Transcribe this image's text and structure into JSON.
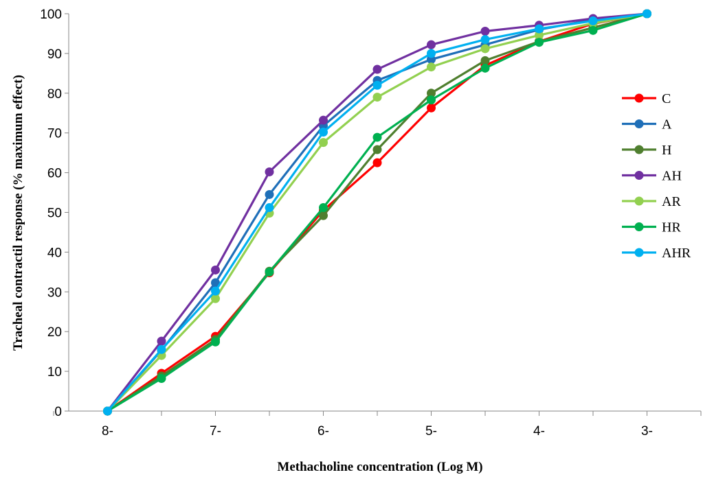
{
  "chart_data": {
    "type": "line",
    "xlabel": "Methacholine concentration (Log M)",
    "ylabel": "Tracheal contractil response (% maximum effect)",
    "title": "",
    "x": [
      -8,
      -7.5,
      -7,
      -6.5,
      -6,
      -5.5,
      -5,
      -4.5,
      -4,
      -3.5,
      -3
    ],
    "x_tick_labels": [
      "8-",
      "7-",
      "6-",
      "5-",
      "4-",
      "3-"
    ],
    "xlim": [
      -8.5,
      -2.5
    ],
    "ylim": [
      0,
      100
    ],
    "y_ticks": [
      0,
      10,
      20,
      30,
      40,
      50,
      60,
      70,
      80,
      90,
      100
    ],
    "grid": false,
    "legend_position": "right",
    "series": [
      {
        "name": "C",
        "color": "#ff0000",
        "values": [
          0,
          9.5,
          18.8,
          34.8,
          50.5,
          62.5,
          76.3,
          87.0,
          93.0,
          97.5,
          100
        ]
      },
      {
        "name": "A",
        "color": "#1f6fb8",
        "values": [
          0,
          15.3,
          32.3,
          54.5,
          71.8,
          83.2,
          88.5,
          92.2,
          96.0,
          98.5,
          100
        ]
      },
      {
        "name": "H",
        "color": "#4f7f2f",
        "values": [
          0,
          8.8,
          18.0,
          35.2,
          49.2,
          65.8,
          80.0,
          88.2,
          93.0,
          96.5,
          100
        ]
      },
      {
        "name": "AH",
        "color": "#7030a0",
        "values": [
          0,
          17.6,
          35.5,
          60.2,
          73.2,
          86.0,
          92.2,
          95.6,
          97.1,
          98.8,
          100
        ]
      },
      {
        "name": "AR",
        "color": "#92d050",
        "values": [
          0,
          14.0,
          28.3,
          49.8,
          67.6,
          79.0,
          86.6,
          91.2,
          94.6,
          97.6,
          100
        ]
      },
      {
        "name": "HR",
        "color": "#00b050",
        "values": [
          0,
          8.2,
          17.4,
          35.0,
          51.2,
          68.9,
          78.3,
          86.3,
          92.8,
          95.8,
          100
        ]
      },
      {
        "name": "AHR",
        "color": "#00b0f0",
        "values": [
          0,
          15.5,
          30.2,
          51.2,
          70.2,
          82.0,
          90.0,
          93.5,
          96.2,
          98.2,
          100
        ]
      }
    ]
  }
}
